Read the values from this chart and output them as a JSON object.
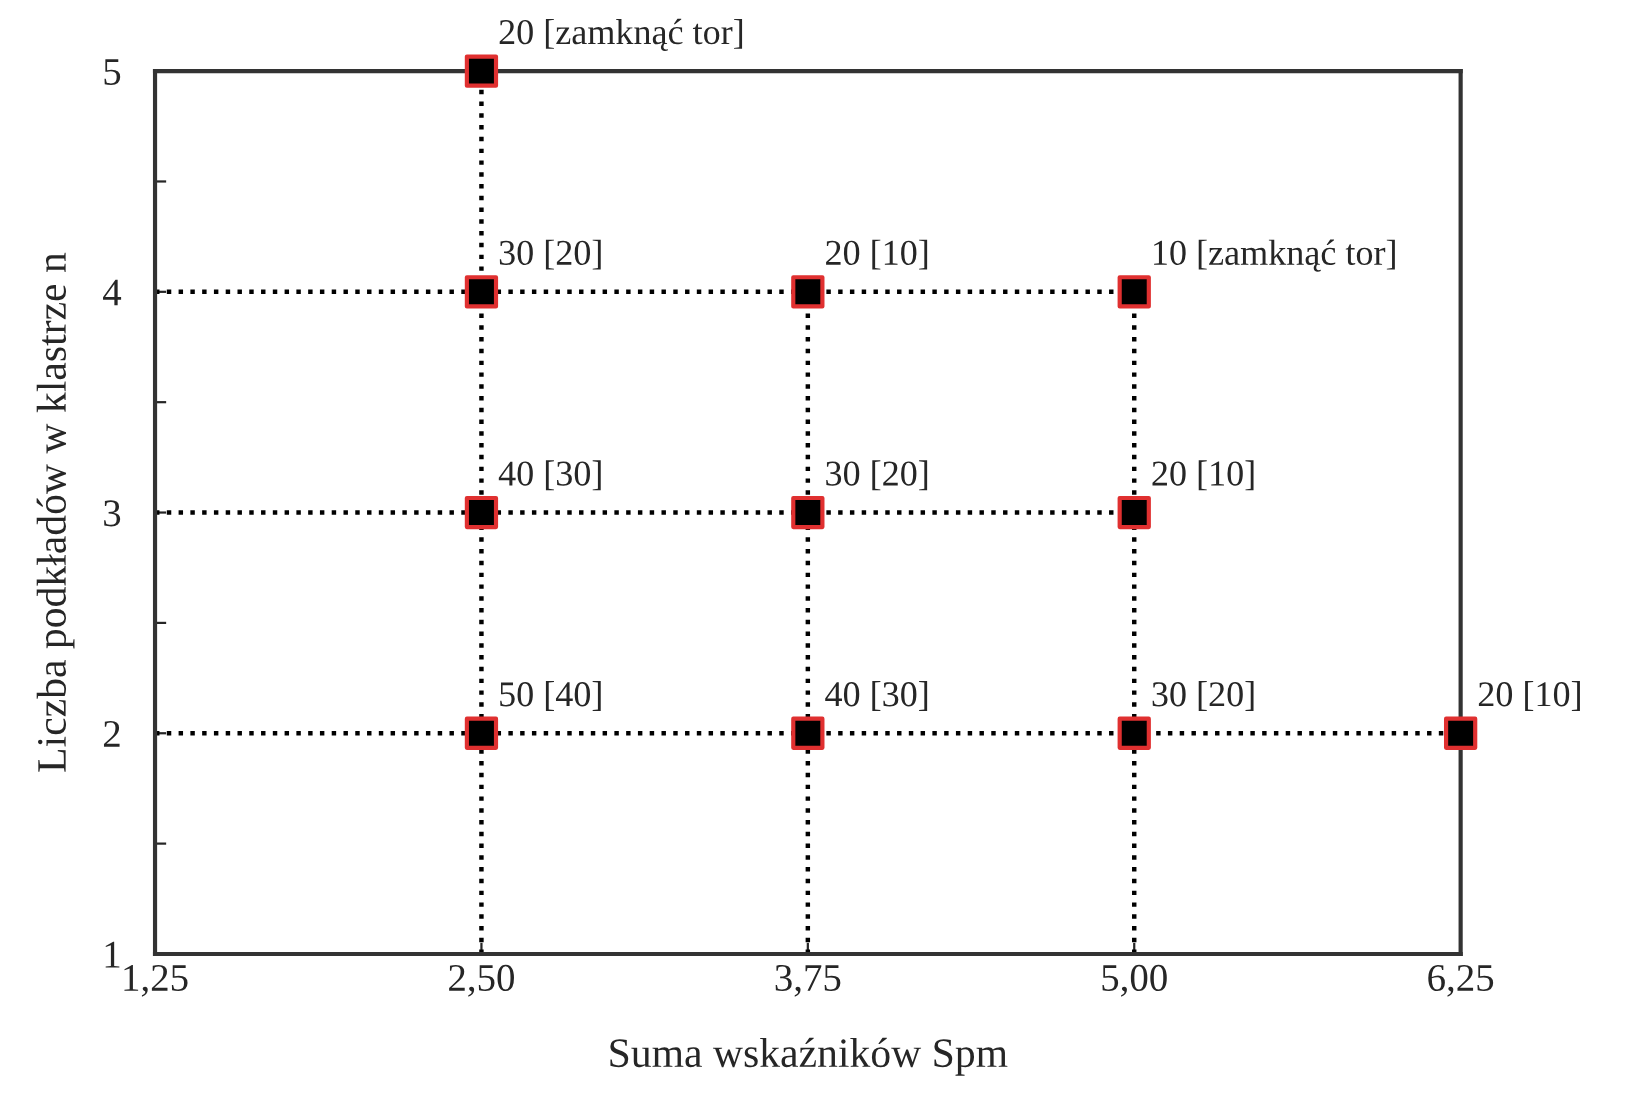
{
  "chart_data": {
    "type": "scatter",
    "xlabel": "Suma wskaźników Spm",
    "ylabel": "Liczba podkładów w klastrze n",
    "xlim": [
      1.25,
      6.25
    ],
    "ylim": [
      1,
      5
    ],
    "xticks": [
      {
        "value": 1.25,
        "label": "1,25"
      },
      {
        "value": 2.5,
        "label": "2,50"
      },
      {
        "value": 3.75,
        "label": "3,75"
      },
      {
        "value": 5.0,
        "label": "5,00"
      },
      {
        "value": 6.25,
        "label": "6,25"
      }
    ],
    "yticks": [
      1,
      {
        "value": 1.5,
        "label": null
      },
      2,
      {
        "value": 2.5,
        "label": null
      },
      3,
      {
        "value": 3.5,
        "label": null
      },
      4,
      {
        "value": 4.5,
        "label": null
      },
      5
    ],
    "grid": false,
    "legend": false,
    "series": [
      {
        "type": "line",
        "line_style": "dotted",
        "marker": "none",
        "color": "#000000",
        "x": [
          1.25,
          5.0
        ],
        "values": [
          4,
          4
        ]
      },
      {
        "type": "line",
        "line_style": "dotted",
        "marker": "none",
        "color": "#000000",
        "x": [
          1.25,
          5.0
        ],
        "values": [
          3,
          3
        ]
      },
      {
        "type": "line",
        "line_style": "dotted",
        "marker": "none",
        "color": "#000000",
        "x": [
          1.25,
          6.25
        ],
        "values": [
          2,
          2
        ]
      },
      {
        "type": "line",
        "line_style": "dotted",
        "marker": "none",
        "color": "#000000",
        "x": [
          2.5,
          2.5
        ],
        "values": [
          1,
          5
        ]
      },
      {
        "type": "line",
        "line_style": "dotted",
        "marker": "none",
        "color": "#000000",
        "x": [
          3.75,
          3.75
        ],
        "values": [
          1,
          4
        ]
      },
      {
        "type": "line",
        "line_style": "dotted",
        "marker": "none",
        "color": "#000000",
        "x": [
          5.0,
          5.0
        ],
        "values": [
          1,
          4
        ]
      },
      {
        "marker": "square",
        "color": "#000000",
        "x": [
          2.5,
          2.5,
          2.5,
          2.5,
          3.75,
          3.75,
          3.75,
          5.0,
          5.0,
          5.0,
          6.25
        ],
        "values": [
          5,
          4,
          3,
          2,
          4,
          3,
          2,
          4,
          3,
          2,
          2
        ]
      }
    ],
    "annotations": [
      {
        "text": "20 [zamknąć tor]",
        "x": 2.5,
        "y": 5
      },
      {
        "text": "30 [20]",
        "x": 2.5,
        "y": 4
      },
      {
        "text": "40 [30]",
        "x": 2.5,
        "y": 3
      },
      {
        "text": "50 [40]",
        "x": 2.5,
        "y": 2
      },
      {
        "text": "20 [10]",
        "x": 3.75,
        "y": 4
      },
      {
        "text": "30 [20]",
        "x": 3.75,
        "y": 3
      },
      {
        "text": "40 [30]",
        "x": 3.75,
        "y": 2
      },
      {
        "text": "10 [zamknąć tor]",
        "x": 5.0,
        "y": 4
      },
      {
        "text": "20 [10]",
        "x": 5.0,
        "y": 3
      },
      {
        "text": "30 [20]",
        "x": 5.0,
        "y": 2
      },
      {
        "text": "20 [10]",
        "x": 6.25,
        "y": 2
      }
    ]
  }
}
